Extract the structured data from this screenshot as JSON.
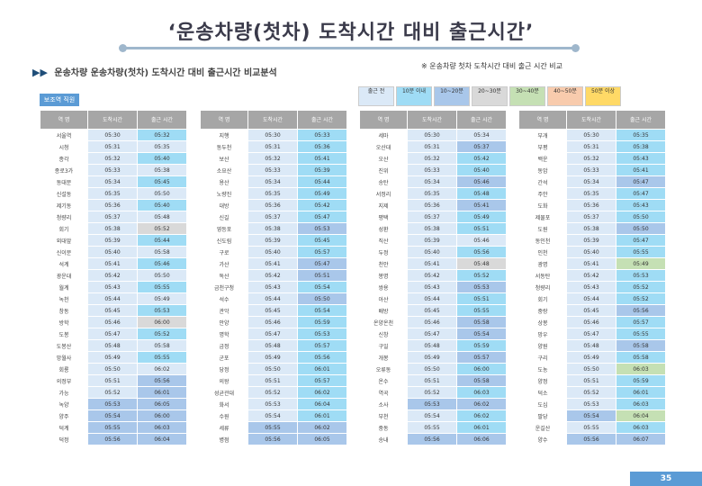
{
  "title": "‘운송차량(첫차) 도착시간 대비 출근시간’",
  "subtitle": "운송차량 운송차량(첫차) 도착시간 대비 출근시간 비교분석",
  "note": "※ 운송차량 첫차 도착시간 대비 출근 시간 비교",
  "tag": "보조역 직원",
  "legend": [
    {
      "label": "출근 전",
      "color": "#dbe9f7"
    },
    {
      "label": "10분 이내",
      "color": "#9fdcf5"
    },
    {
      "label": "10~20분",
      "color": "#a9c7ea"
    },
    {
      "label": "20~30분",
      "color": "#d9d9d9"
    },
    {
      "label": "30~40분",
      "color": "#c5e0b4"
    },
    {
      "label": "40~50분",
      "color": "#f8cbad"
    },
    {
      "label": "50분 이상",
      "color": "#ffd966"
    }
  ],
  "headers": [
    "역 명",
    "도착시간",
    "출근 시간"
  ],
  "groups": [
    {
      "rows": [
        [
          "서울역",
          "05:30",
          "05:32",
          1
        ],
        [
          "시청",
          "05:31",
          "05:35",
          0
        ],
        [
          "종각",
          "05:32",
          "05:40",
          1
        ],
        [
          "종로3가",
          "05:33",
          "05:38",
          0
        ],
        [
          "동대문",
          "05:34",
          "05:45",
          1
        ],
        [
          "신설동",
          "05:35",
          "05:50",
          0
        ],
        [
          "제기동",
          "05:36",
          "05:40",
          1
        ],
        [
          "청량리",
          "05:37",
          "05:48",
          0
        ],
        [
          "회기",
          "05:38",
          "05:52",
          3
        ],
        [
          "외대앞",
          "05:39",
          "05:44",
          1
        ],
        [
          "신이문",
          "05:40",
          "05:58",
          0
        ],
        [
          "석계",
          "05:41",
          "05:46",
          1
        ],
        [
          "광운대",
          "05:42",
          "05:50",
          0
        ],
        [
          "월계",
          "05:43",
          "05:55",
          1
        ],
        [
          "녹천",
          "05:44",
          "05:49",
          0
        ],
        [
          "창동",
          "05:45",
          "05:53",
          1
        ],
        [
          "방학",
          "05:46",
          "06:00",
          3
        ],
        [
          "도봉",
          "05:47",
          "05:52",
          1
        ],
        [
          "도봉산",
          "05:48",
          "05:58",
          0
        ],
        [
          "망월사",
          "05:49",
          "05:55",
          1
        ],
        [
          "회룡",
          "05:50",
          "06:02",
          0
        ],
        [
          "의정부",
          "05:51",
          "05:56",
          2
        ],
        [
          "가능",
          "05:52",
          "06:01",
          2
        ],
        [
          "녹양",
          "05:53",
          "06:05",
          2
        ],
        [
          "양주",
          "05:54",
          "06:00",
          2
        ],
        [
          "덕계",
          "05:55",
          "06:03",
          2
        ],
        [
          "덕정",
          "05:56",
          "06:04",
          2
        ]
      ]
    },
    {
      "rows": [
        [
          "지행",
          "05:30",
          "05:33",
          1
        ],
        [
          "동두천",
          "05:31",
          "05:36",
          1
        ],
        [
          "보산",
          "05:32",
          "05:41",
          1
        ],
        [
          "소요산",
          "05:33",
          "05:39",
          1
        ],
        [
          "용산",
          "05:34",
          "05:44",
          1
        ],
        [
          "노량진",
          "05:35",
          "05:49",
          1
        ],
        [
          "대방",
          "05:36",
          "05:42",
          1
        ],
        [
          "신길",
          "05:37",
          "05:47",
          1
        ],
        [
          "영등포",
          "05:38",
          "05:53",
          2
        ],
        [
          "신도림",
          "05:39",
          "05:45",
          1
        ],
        [
          "구로",
          "05:40",
          "05:57",
          1
        ],
        [
          "가산",
          "05:41",
          "05:47",
          2
        ],
        [
          "독산",
          "05:42",
          "05:51",
          2
        ],
        [
          "금천구청",
          "05:43",
          "05:54",
          1
        ],
        [
          "석수",
          "05:44",
          "05:50",
          2
        ],
        [
          "관악",
          "05:45",
          "05:54",
          1
        ],
        [
          "안양",
          "05:46",
          "05:59",
          1
        ],
        [
          "명학",
          "05:47",
          "05:53",
          1
        ],
        [
          "금정",
          "05:48",
          "05:57",
          1
        ],
        [
          "군포",
          "05:49",
          "05:56",
          1
        ],
        [
          "당정",
          "05:50",
          "06:01",
          1
        ],
        [
          "의왕",
          "05:51",
          "05:57",
          1
        ],
        [
          "성균관대",
          "05:52",
          "06:02",
          1
        ],
        [
          "화서",
          "05:53",
          "06:04",
          1
        ],
        [
          "수원",
          "05:54",
          "06:01",
          1
        ],
        [
          "세류",
          "05:55",
          "06:02",
          2
        ],
        [
          "병점",
          "05:56",
          "06:05",
          2
        ]
      ]
    },
    {
      "rows": [
        [
          "세마",
          "05:30",
          "05:34",
          0
        ],
        [
          "오산대",
          "05:31",
          "05:37",
          2
        ],
        [
          "오산",
          "05:32",
          "05:42",
          1
        ],
        [
          "진위",
          "05:33",
          "05:40",
          1
        ],
        [
          "송탄",
          "05:34",
          "05:46",
          2
        ],
        [
          "서정리",
          "05:35",
          "05:48",
          1
        ],
        [
          "지제",
          "05:36",
          "05:41",
          2
        ],
        [
          "평택",
          "05:37",
          "05:49",
          1
        ],
        [
          "성환",
          "05:38",
          "05:51",
          1
        ],
        [
          "직산",
          "05:39",
          "05:46",
          0
        ],
        [
          "두정",
          "05:40",
          "05:56",
          1
        ],
        [
          "천안",
          "05:41",
          "05:48",
          3
        ],
        [
          "봉명",
          "05:42",
          "05:52",
          1
        ],
        [
          "쌍용",
          "05:43",
          "05:53",
          2
        ],
        [
          "아산",
          "05:44",
          "05:51",
          1
        ],
        [
          "배방",
          "05:45",
          "05:55",
          1
        ],
        [
          "온양온천",
          "05:46",
          "05:58",
          2
        ],
        [
          "신창",
          "05:47",
          "05:54",
          2
        ],
        [
          "구일",
          "05:48",
          "05:59",
          1
        ],
        [
          "개봉",
          "05:49",
          "05:57",
          2
        ],
        [
          "오류동",
          "05:50",
          "06:00",
          1
        ],
        [
          "온수",
          "05:51",
          "05:58",
          2
        ],
        [
          "역곡",
          "05:52",
          "06:03",
          1
        ],
        [
          "소사",
          "05:53",
          "06:02",
          2
        ],
        [
          "부천",
          "05:54",
          "06:02",
          1
        ],
        [
          "중동",
          "05:55",
          "06:01",
          1
        ],
        [
          "송내",
          "05:56",
          "06:06",
          2
        ]
      ]
    },
    {
      "rows": [
        [
          "부개",
          "05:30",
          "05:35",
          1
        ],
        [
          "부평",
          "05:31",
          "05:38",
          1
        ],
        [
          "백운",
          "05:32",
          "05:43",
          1
        ],
        [
          "동암",
          "05:33",
          "05:41",
          1
        ],
        [
          "간석",
          "05:34",
          "05:47",
          2
        ],
        [
          "주안",
          "05:35",
          "05:47",
          1
        ],
        [
          "도화",
          "05:36",
          "05:43",
          1
        ],
        [
          "제물포",
          "05:37",
          "05:50",
          1
        ],
        [
          "도원",
          "05:38",
          "05:50",
          2
        ],
        [
          "동인천",
          "05:39",
          "05:47",
          1
        ],
        [
          "인천",
          "05:40",
          "05:55",
          1
        ],
        [
          "광명",
          "05:41",
          "05:49",
          4
        ],
        [
          "서동탄",
          "05:42",
          "05:53",
          1
        ],
        [
          "청량리",
          "05:43",
          "05:52",
          1
        ],
        [
          "회기",
          "05:44",
          "05:52",
          1
        ],
        [
          "중랑",
          "05:45",
          "05:56",
          2
        ],
        [
          "상봉",
          "05:46",
          "05:57",
          1
        ],
        [
          "망우",
          "05:47",
          "05:55",
          1
        ],
        [
          "양원",
          "05:48",
          "05:58",
          2
        ],
        [
          "구리",
          "05:49",
          "05:58",
          1
        ],
        [
          "도농",
          "05:50",
          "06:03",
          4
        ],
        [
          "양정",
          "05:51",
          "05:59",
          1
        ],
        [
          "덕소",
          "05:52",
          "06:01",
          1
        ],
        [
          "도심",
          "05:53",
          "06:03",
          1
        ],
        [
          "팔당",
          "05:54",
          "06:04",
          4
        ],
        [
          "운길산",
          "05:55",
          "06:03",
          1
        ],
        [
          "양수",
          "05:56",
          "06:07",
          2
        ]
      ]
    }
  ],
  "page_number": "35"
}
